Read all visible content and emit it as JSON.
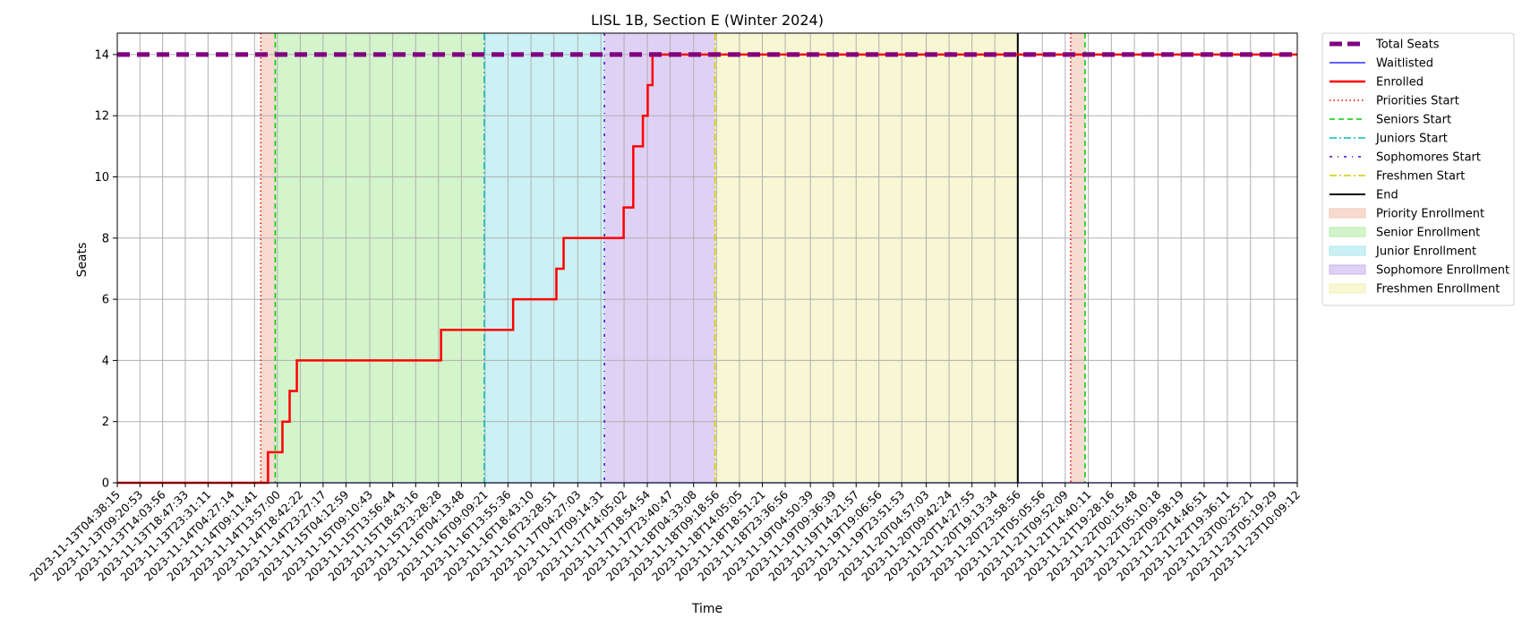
{
  "chart_data": {
    "type": "line",
    "title": "LISL 1B, Section E (Winter 2024)",
    "xlabel": "Time",
    "ylabel": "Seats",
    "xlim": [
      "2023-11-13T04:38:15",
      "2023-11-23T10:09:12"
    ],
    "ylim": [
      0,
      14.7
    ],
    "yticks": [
      0,
      2,
      4,
      6,
      8,
      10,
      12,
      14
    ],
    "xticks": [
      "2023-11-13T04:38:15",
      "2023-11-13T09:20:53",
      "2023-11-13T14:03:56",
      "2023-11-13T18:47:33",
      "2023-11-13T23:31:11",
      "2023-11-14T04:27:14",
      "2023-11-14T09:11:41",
      "2023-11-14T13:57:00",
      "2023-11-14T18:42:22",
      "2023-11-14T23:27:17",
      "2023-11-15T04:12:59",
      "2023-11-15T09:10:43",
      "2023-11-15T13:56:44",
      "2023-11-15T18:43:16",
      "2023-11-15T23:28:28",
      "2023-11-16T04:13:48",
      "2023-11-16T09:09:21",
      "2023-11-16T13:55:36",
      "2023-11-16T18:43:10",
      "2023-11-16T23:28:51",
      "2023-11-17T04:27:03",
      "2023-11-17T09:14:31",
      "2023-11-17T14:05:02",
      "2023-11-17T18:54:54",
      "2023-11-17T23:40:47",
      "2023-11-18T04:33:08",
      "2023-11-18T09:18:56",
      "2023-11-18T14:05:05",
      "2023-11-18T18:51:21",
      "2023-11-18T23:36:56",
      "2023-11-19T04:50:39",
      "2023-11-19T09:36:39",
      "2023-11-19T14:21:57",
      "2023-11-19T19:06:56",
      "2023-11-19T23:51:53",
      "2023-11-20T04:57:03",
      "2023-11-20T09:42:24",
      "2023-11-20T14:27:55",
      "2023-11-20T19:13:34",
      "2023-11-20T23:58:56",
      "2023-11-21T05:05:56",
      "2023-11-21T09:52:09",
      "2023-11-21T14:40:11",
      "2023-11-21T19:28:16",
      "2023-11-22T00:15:48",
      "2023-11-22T05:10:18",
      "2023-11-22T09:58:19",
      "2023-11-22T14:46:51",
      "2023-11-22T19:36:11",
      "2023-11-23T00:25:21",
      "2023-11-23T05:19:29",
      "2023-11-23T10:09:12"
    ],
    "grid": true,
    "legend_position": "outside-right",
    "series": [
      {
        "name": "Total Seats",
        "color": "#800080",
        "style": "dashed-thick",
        "x": [
          "2023-11-13T04:38:15",
          "2023-11-23T10:09:12"
        ],
        "y": [
          14,
          14
        ]
      },
      {
        "name": "Waitlisted",
        "color": "#0000ff",
        "style": "solid-thin",
        "x": [
          "2023-11-13T04:38:15",
          "2023-11-23T10:09:12"
        ],
        "y": [
          0,
          0
        ]
      },
      {
        "name": "Enrolled",
        "color": "#ff0000",
        "style": "steps",
        "x": [
          "2023-11-13T04:38:15",
          "2023-11-14T12:00:00",
          "2023-11-14T15:00:00",
          "2023-11-14T16:30:00",
          "2023-11-14T18:00:00",
          "2023-11-15T00:00:00",
          "2023-11-16T00:00:00",
          "2023-11-16T15:00:00",
          "2023-11-17T00:00:00",
          "2023-11-17T01:30:00",
          "2023-11-17T14:00:00",
          "2023-11-17T16:00:00",
          "2023-11-17T18:00:00",
          "2023-11-17T19:00:00",
          "2023-11-17T20:00:00",
          "2023-11-23T10:09:12"
        ],
        "y": [
          0,
          1,
          2,
          3,
          4,
          4,
          5,
          6,
          7,
          8,
          9,
          11,
          12,
          13,
          14,
          14
        ]
      }
    ],
    "events": [
      {
        "name": "Priorities Start",
        "color": "#ff0000",
        "style": "dotted",
        "x": [
          "2023-11-14T10:30:00",
          "2023-11-21T11:00:00"
        ]
      },
      {
        "name": "Seniors Start",
        "color": "#00cc00",
        "style": "dashed",
        "x": [
          "2023-11-14T13:30:00",
          "2023-11-21T14:00:00"
        ]
      },
      {
        "name": "Juniors Start",
        "color": "#00bfbf",
        "style": "dashdot",
        "x": [
          "2023-11-16T09:00:00"
        ]
      },
      {
        "name": "Sophomores Start",
        "color": "#4b00d4",
        "style": "dashdot-sparse",
        "x": [
          "2023-11-17T10:00:00"
        ]
      },
      {
        "name": "Freshmen Start",
        "color": "#d4cc00",
        "style": "dashdot",
        "x": [
          "2023-11-18T09:00:00"
        ]
      },
      {
        "name": "End",
        "color": "#000000",
        "style": "solid",
        "x": [
          "2023-11-21T00:00:00"
        ]
      }
    ],
    "periods": [
      {
        "name": "Priority Enrollment",
        "color": "#f4c3b0",
        "ranges": [
          [
            "2023-11-14T10:30:00",
            "2023-11-14T13:30:00"
          ],
          [
            "2023-11-21T11:00:00",
            "2023-11-21T14:00:00"
          ]
        ]
      },
      {
        "name": "Senior Enrollment",
        "color": "#b8ecaa",
        "ranges": [
          [
            "2023-11-14T13:30:00",
            "2023-11-16T09:00:00"
          ]
        ]
      },
      {
        "name": "Junior Enrollment",
        "color": "#a8e8ec",
        "ranges": [
          [
            "2023-11-16T09:00:00",
            "2023-11-17T10:00:00"
          ]
        ]
      },
      {
        "name": "Sophomore Enrollment",
        "color": "#c9b3ec",
        "ranges": [
          [
            "2023-11-17T10:00:00",
            "2023-11-18T09:00:00"
          ]
        ]
      },
      {
        "name": "Freshmen Enrollment",
        "color": "#f2f2b6",
        "ranges": [
          [
            "2023-11-18T09:00:00",
            "2023-11-21T00:00:00"
          ]
        ]
      }
    ]
  }
}
